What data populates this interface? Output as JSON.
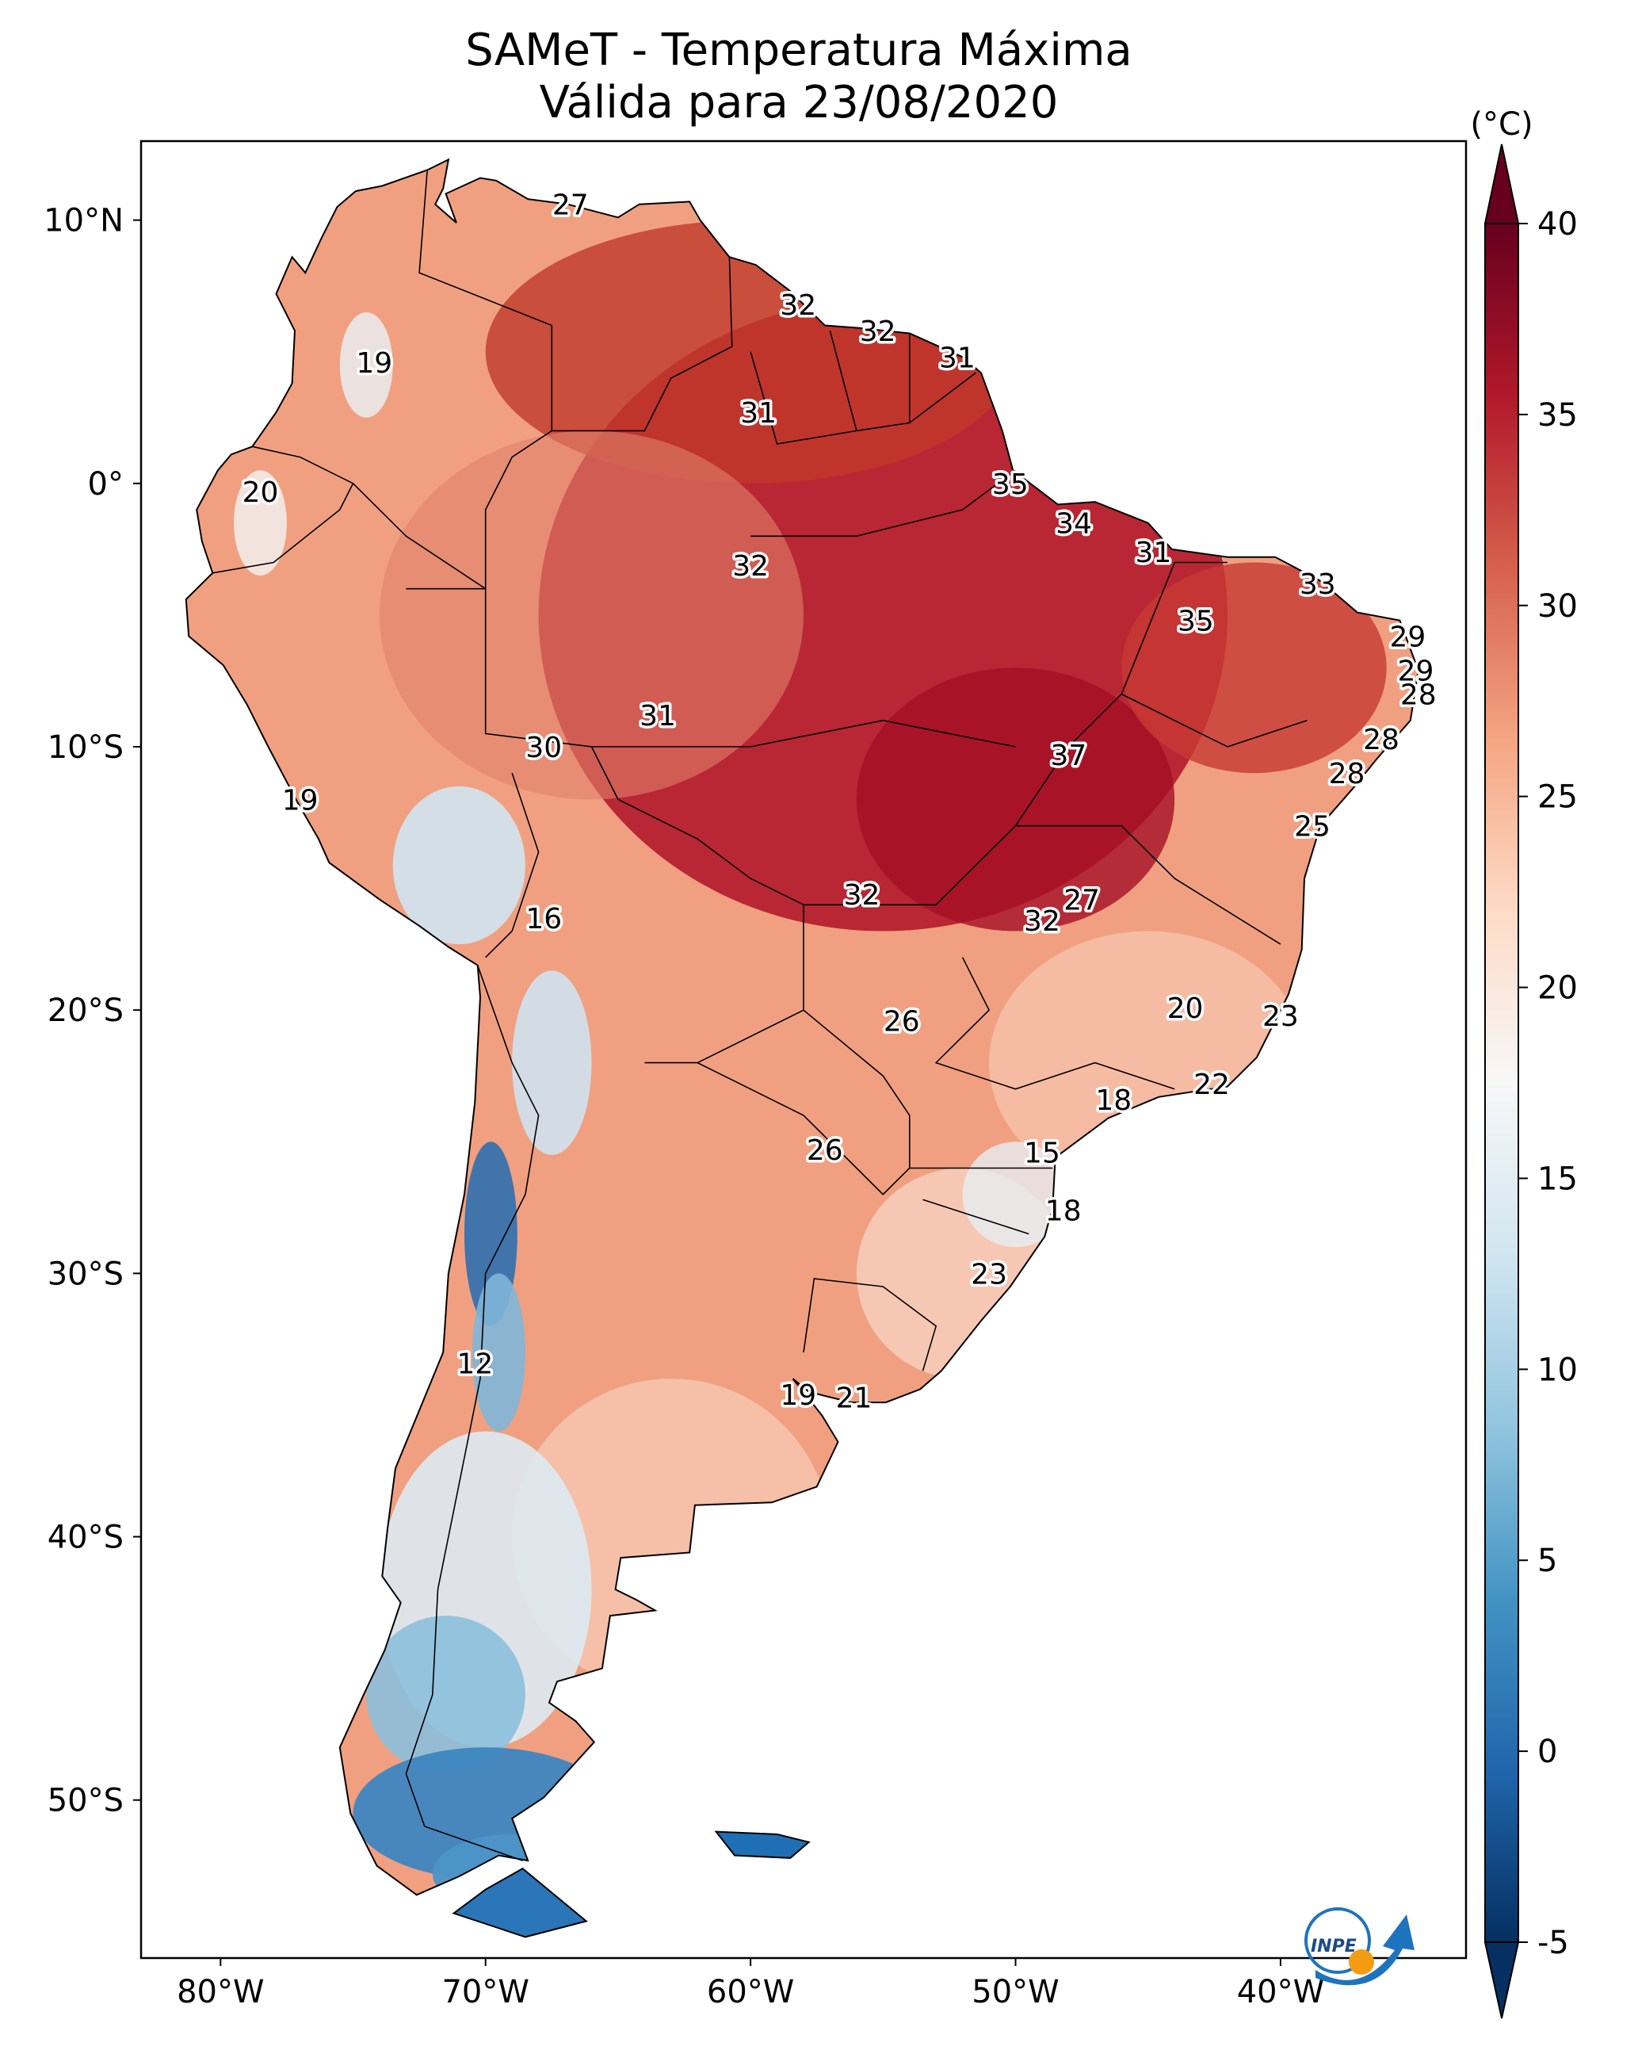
{
  "title": {
    "line1": "SAMeT - Temperatura Máxima",
    "line2": "Válida para 23/08/2020"
  },
  "colorbar": {
    "unit": "(°C)",
    "min": -5,
    "max": 40,
    "ticks": [
      "-5",
      "0",
      "5",
      "10",
      "15",
      "20",
      "25",
      "30",
      "35",
      "40"
    ],
    "colors": [
      "#053061",
      "#2166ac",
      "#4393c3",
      "#92c5de",
      "#d1e5f0",
      "#f7f7f7",
      "#fddbc7",
      "#f4a582",
      "#d6604d",
      "#b2182b",
      "#67001f"
    ]
  },
  "axes": {
    "lon_labels": [
      "80°W",
      "70°W",
      "60°W",
      "50°W",
      "40°W"
    ],
    "lat_labels": [
      "10°N",
      "0°",
      "10°S",
      "20°S",
      "30°S",
      "40°S",
      "50°S"
    ],
    "lon_values": [
      -80,
      -70,
      -60,
      -50,
      -40
    ],
    "lat_values": [
      10,
      0,
      -10,
      -20,
      -30,
      -40,
      -50
    ],
    "extent": {
      "lon_min": -83,
      "lon_max": -33,
      "lat_min": -56,
      "lat_max": 13
    }
  },
  "logo": {
    "label": "INPE"
  },
  "station_values": [
    {
      "text": "27",
      "lon": -66.8,
      "lat": 10.6
    },
    {
      "text": "19",
      "lon": -74.2,
      "lat": 4.6
    },
    {
      "text": "32",
      "lon": -58.2,
      "lat": 6.8
    },
    {
      "text": "32",
      "lon": -55.2,
      "lat": 5.8
    },
    {
      "text": "31",
      "lon": -52.2,
      "lat": 4.8
    },
    {
      "text": "31",
      "lon": -59.7,
      "lat": 2.7
    },
    {
      "text": "20",
      "lon": -78.5,
      "lat": -0.3
    },
    {
      "text": "35",
      "lon": -50.2,
      "lat": 0.0
    },
    {
      "text": "34",
      "lon": -47.8,
      "lat": -1.5
    },
    {
      "text": "32",
      "lon": -60.0,
      "lat": -3.1
    },
    {
      "text": "31",
      "lon": -44.8,
      "lat": -2.6
    },
    {
      "text": "33",
      "lon": -38.6,
      "lat": -3.8
    },
    {
      "text": "35",
      "lon": -43.2,
      "lat": -5.2
    },
    {
      "text": "29",
      "lon": -35.2,
      "lat": -5.8
    },
    {
      "text": "29",
      "lon": -34.9,
      "lat": -7.1
    },
    {
      "text": "28",
      "lon": -34.8,
      "lat": -8.0
    },
    {
      "text": "31",
      "lon": -63.5,
      "lat": -8.8
    },
    {
      "text": "30",
      "lon": -67.8,
      "lat": -10.0
    },
    {
      "text": "28",
      "lon": -36.2,
      "lat": -9.7
    },
    {
      "text": "37",
      "lon": -48.0,
      "lat": -10.3
    },
    {
      "text": "28",
      "lon": -37.5,
      "lat": -11.0
    },
    {
      "text": "19",
      "lon": -77.0,
      "lat": -12.0
    },
    {
      "text": "25",
      "lon": -38.8,
      "lat": -13.0
    },
    {
      "text": "27",
      "lon": -47.5,
      "lat": -15.8
    },
    {
      "text": "32",
      "lon": -55.8,
      "lat": -15.6
    },
    {
      "text": "16",
      "lon": -67.8,
      "lat": -16.5
    },
    {
      "text": "32",
      "lon": -49.0,
      "lat": -16.6
    },
    {
      "text": "20",
      "lon": -43.6,
      "lat": -19.9
    },
    {
      "text": "23",
      "lon": -40.0,
      "lat": -20.2
    },
    {
      "text": "26",
      "lon": -54.3,
      "lat": -20.4
    },
    {
      "text": "22",
      "lon": -42.6,
      "lat": -22.8
    },
    {
      "text": "18",
      "lon": -46.3,
      "lat": -23.4
    },
    {
      "text": "26",
      "lon": -57.2,
      "lat": -25.3
    },
    {
      "text": "15",
      "lon": -49.0,
      "lat": -25.4
    },
    {
      "text": "18",
      "lon": -48.2,
      "lat": -27.6
    },
    {
      "text": "23",
      "lon": -51.0,
      "lat": -30.0
    },
    {
      "text": "12",
      "lon": -70.4,
      "lat": -33.4
    },
    {
      "text": "19",
      "lon": -58.2,
      "lat": -34.6
    },
    {
      "text": "21",
      "lon": -56.1,
      "lat": -34.7
    }
  ]
}
